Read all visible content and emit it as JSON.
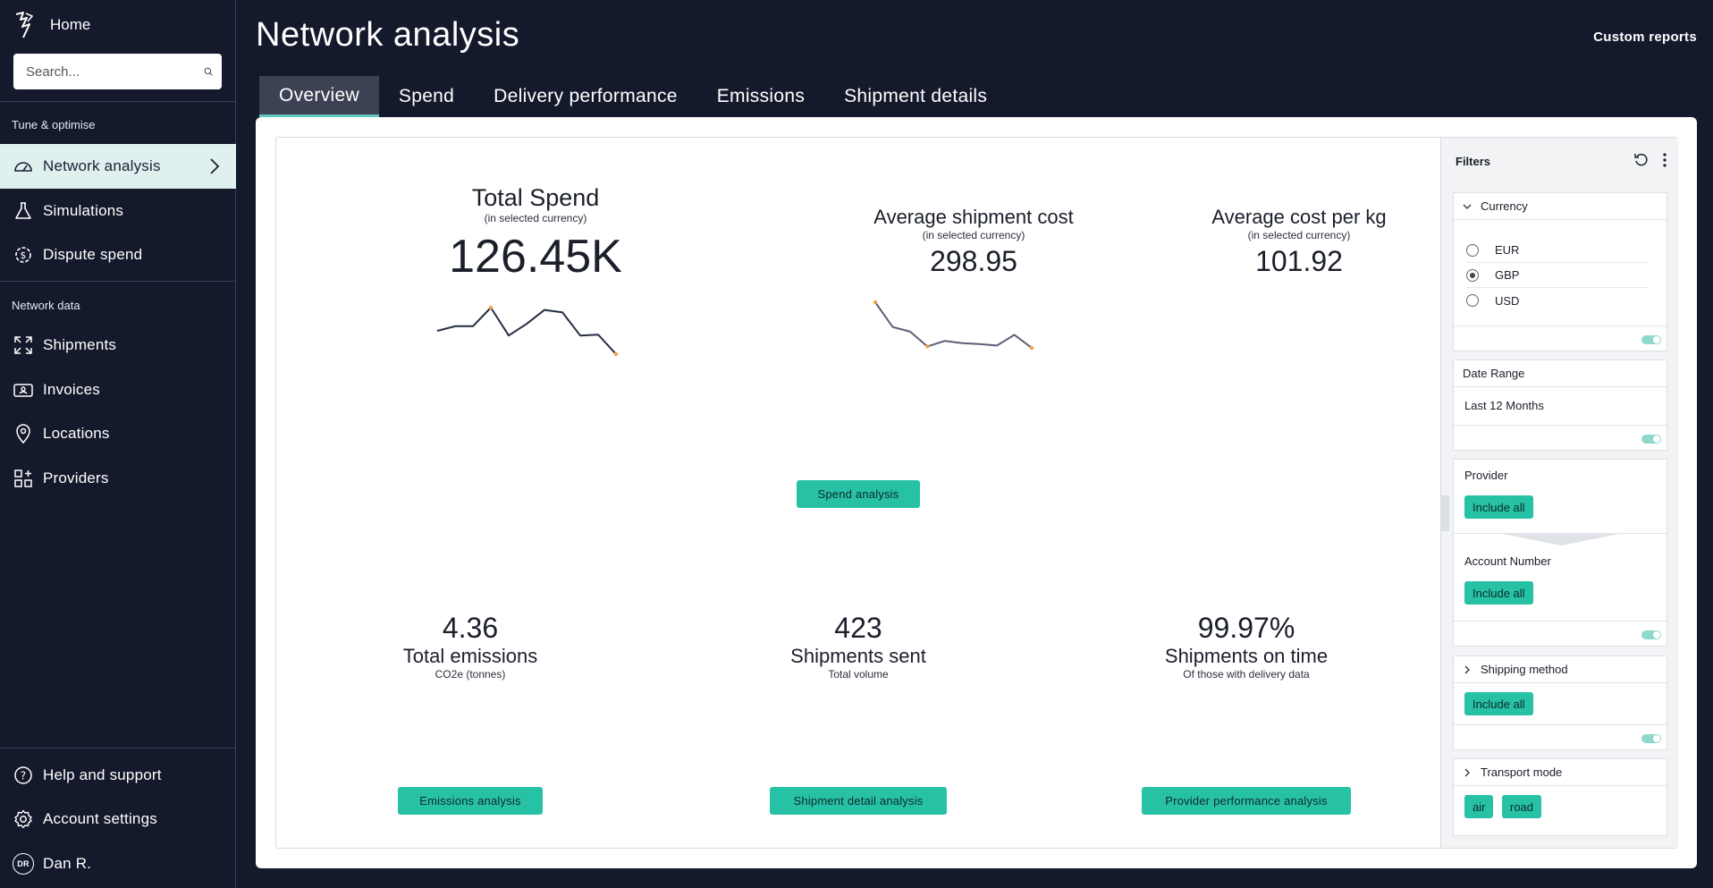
{
  "sidebar": {
    "home_label": "Home",
    "search_placeholder": "Search...",
    "section_tune": "Tune & optimise",
    "section_network": "Network data",
    "items": {
      "network_analysis": "Network analysis",
      "simulations": "Simulations",
      "dispute_spend": "Dispute spend",
      "shipments": "Shipments",
      "invoices": "Invoices",
      "locations": "Locations",
      "providers": "Providers",
      "help": "Help and support",
      "account": "Account settings",
      "user": "Dan R.",
      "user_initials": "DR"
    }
  },
  "header": {
    "title": "Network analysis",
    "custom_reports": "Custom reports",
    "tabs": [
      "Overview",
      "Spend",
      "Delivery performance",
      "Emissions",
      "Shipment details"
    ]
  },
  "metrics": {
    "total_spend": {
      "title": "Total Spend",
      "sub": "(in selected currency)",
      "value": "126.45K"
    },
    "avg_shipment": {
      "title": "Average shipment cost",
      "sub": "(in selected currency)",
      "value": "298.95"
    },
    "avg_kg": {
      "title": "Average cost per kg",
      "sub": "(in selected currency)",
      "value": "101.92"
    },
    "emissions": {
      "value": "4.36",
      "title": "Total emissions",
      "sub": "CO2e (tonnes)"
    },
    "shipments_sent": {
      "value": "423",
      "title": "Shipments sent",
      "sub": "Total volume"
    },
    "on_time": {
      "value": "99.97%",
      "title": "Shipments on time",
      "sub": "Of those with delivery data"
    }
  },
  "buttons": {
    "spend_analysis": "Spend analysis",
    "emissions_analysis": "Emissions analysis",
    "shipment_detail_analysis": "Shipment detail analysis",
    "provider_performance_analysis": "Provider performance analysis"
  },
  "chart_data": [
    {
      "type": "line",
      "x": [
        1,
        2,
        3,
        4,
        5,
        6,
        7,
        8,
        9,
        10,
        11,
        12
      ],
      "values": [
        0.5,
        0.6,
        0.6,
        1.0,
        0.4,
        0.65,
        0.95,
        0.9,
        0.4,
        0.42,
        0.0,
        null
      ],
      "highlight_points": [
        3,
        10
      ],
      "line_color": "#252c45",
      "point_color": "#f0a04b"
    },
    {
      "type": "line",
      "x": [
        1,
        2,
        3,
        4,
        5,
        6,
        7,
        8,
        9,
        10
      ],
      "values": [
        1.0,
        0.47,
        0.37,
        0.05,
        0.17,
        0.12,
        0.1,
        0.07,
        0.3,
        0.02
      ],
      "highlight_points": [
        0,
        3,
        9
      ],
      "line_color": "#5a6078",
      "point_color": "#f0a04b"
    }
  ],
  "filters": {
    "title": "Filters",
    "currency": {
      "label": "Currency",
      "options": [
        "EUR",
        "GBP",
        "USD"
      ],
      "selected": "GBP"
    },
    "date_range": {
      "label": "Date Range",
      "value": "Last 12 Months"
    },
    "provider": {
      "label": "Provider",
      "chip": "Include all"
    },
    "account_number": {
      "label": "Account Number",
      "chip": "Include all"
    },
    "shipping_method": {
      "label": "Shipping method",
      "chip": "Include all"
    },
    "transport_mode": {
      "label": "Transport mode",
      "chips": [
        "air",
        "road"
      ]
    }
  },
  "colors": {
    "accent": "#27c2a6",
    "sidebar_bg": "#141a2c",
    "active_item_bg": "#dff0ef"
  }
}
